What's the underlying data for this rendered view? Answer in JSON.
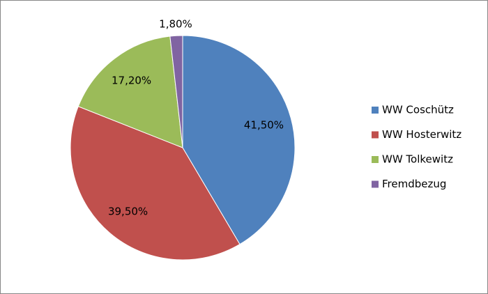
{
  "chart_data": {
    "type": "pie",
    "categories": [
      "WW Coschütz",
      "WW Hosterwitz",
      "WW Tolkewitz",
      "Fremdbezug"
    ],
    "values": [
      41.5,
      39.5,
      17.2,
      1.8
    ],
    "value_labels": [
      "41,50%",
      "39,50%",
      "17,20%",
      "1,80%"
    ],
    "colors": [
      "#4f81bd",
      "#c0504d",
      "#9bbb59",
      "#8064a2"
    ],
    "legend": "right"
  }
}
